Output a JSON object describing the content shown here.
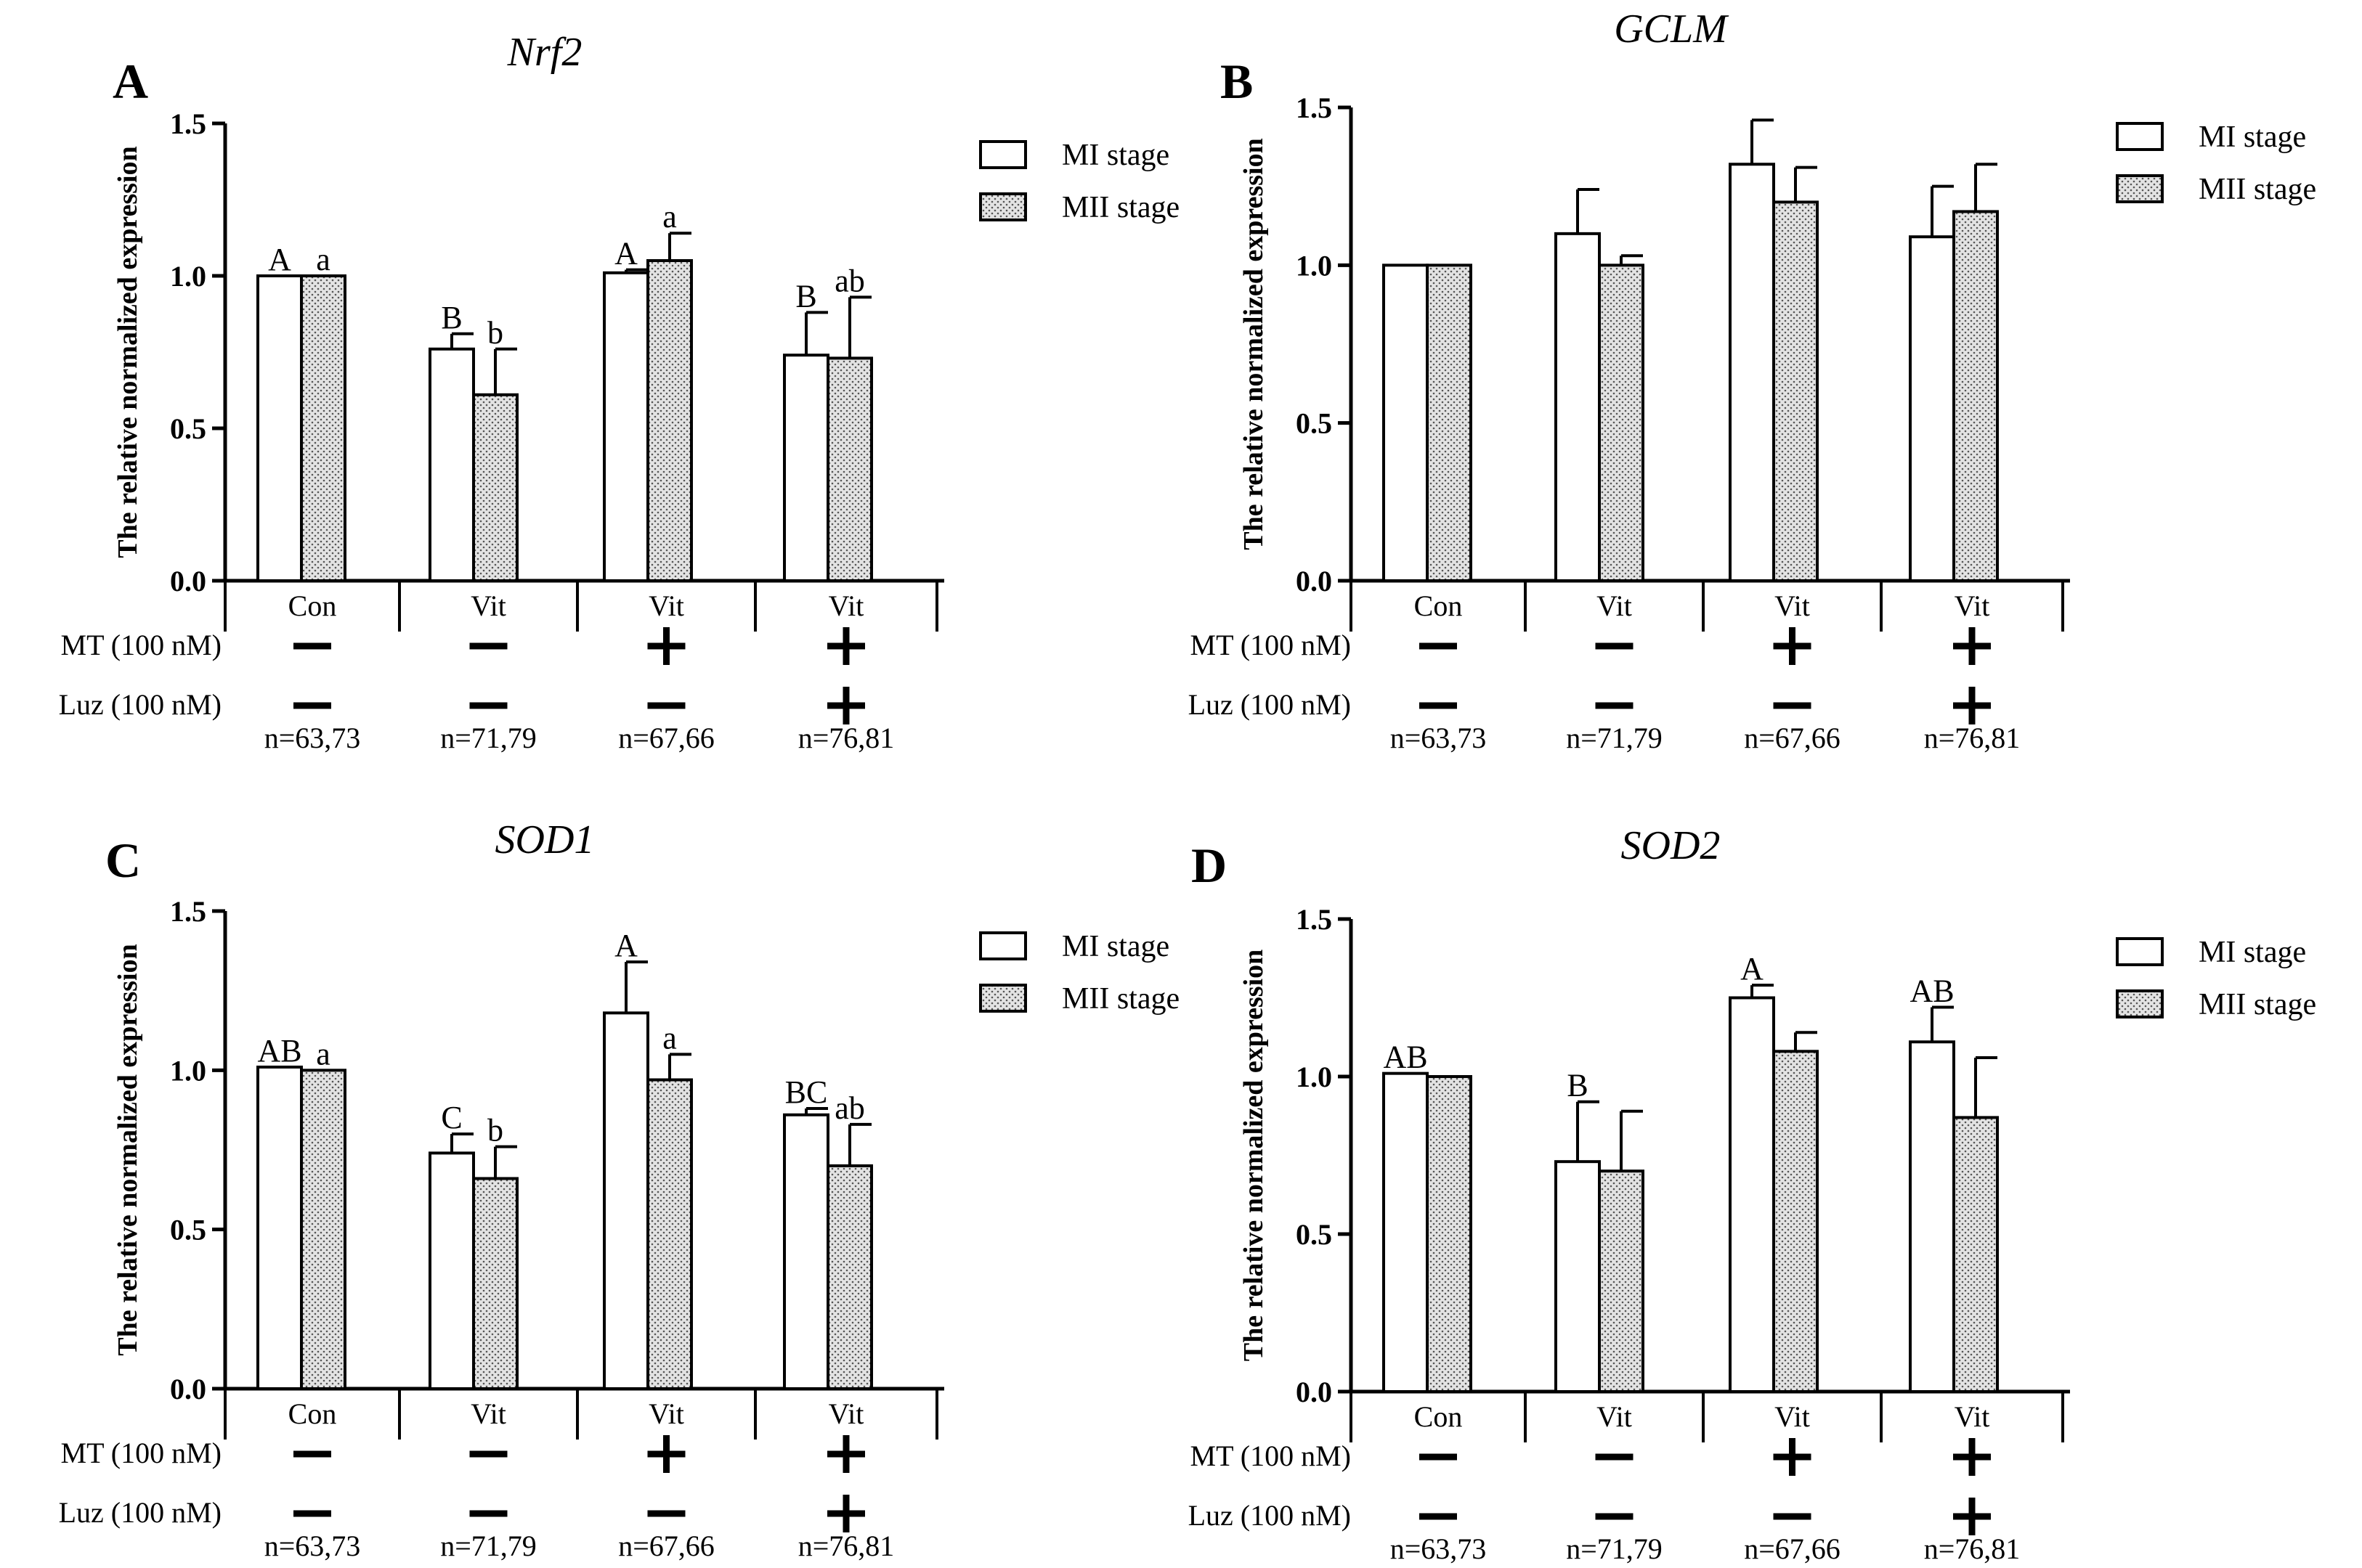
{
  "chart_data": [
    {
      "type": "bar",
      "panel_label": "A",
      "title": "Nrf2",
      "ylabel": "The relative normalized expression",
      "ylim": [
        0,
        1.5
      ],
      "yticks": [
        "0.0",
        "0.5",
        "1.0",
        "1.5"
      ],
      "categories": [
        "Con",
        "Vit",
        "Vit",
        "Vit"
      ],
      "series": [
        {
          "name": "MI stage",
          "values": [
            1.0,
            0.76,
            1.01,
            0.74
          ],
          "errors": [
            0.0,
            0.05,
            0.01,
            0.14
          ],
          "labels": [
            "A",
            "B",
            "A",
            "B"
          ]
        },
        {
          "name": "MII stage",
          "values": [
            1.0,
            0.61,
            1.05,
            0.73
          ],
          "errors": [
            0.0,
            0.15,
            0.09,
            0.2
          ],
          "labels": [
            "a",
            "b",
            "a",
            "ab"
          ]
        }
      ],
      "treatment_rows": [
        {
          "label": "MT (100 nM)",
          "signs": [
            "−",
            "−",
            "+",
            "+"
          ]
        },
        {
          "label": "Luz (100 nM)",
          "signs": [
            "−",
            "−",
            "−",
            "+"
          ]
        }
      ],
      "n_labels": [
        "n=63,73",
        "n=71,79",
        "n=67,66",
        "n=76,81"
      ],
      "legend_position": "top-right"
    },
    {
      "type": "bar",
      "panel_label": "B",
      "title": "GCLM",
      "ylabel": "The relative normalized expression",
      "ylim": [
        0,
        1.5
      ],
      "yticks": [
        "0.0",
        "0.5",
        "1.0",
        "1.5"
      ],
      "categories": [
        "Con",
        "Vit",
        "Vit",
        "Vit"
      ],
      "series": [
        {
          "name": "MI stage",
          "values": [
            1.0,
            1.1,
            1.32,
            1.09
          ],
          "errors": [
            0.0,
            0.14,
            0.14,
            0.16
          ],
          "labels": [
            "",
            "",
            "",
            ""
          ]
        },
        {
          "name": "MII stage",
          "values": [
            1.0,
            1.0,
            1.2,
            1.17
          ],
          "errors": [
            0.0,
            0.03,
            0.11,
            0.15
          ],
          "labels": [
            "",
            "",
            "",
            ""
          ]
        }
      ],
      "treatment_rows": [
        {
          "label": "MT (100 nM)",
          "signs": [
            "−",
            "−",
            "+",
            "+"
          ]
        },
        {
          "label": "Luz (100 nM)",
          "signs": [
            "−",
            "−",
            "−",
            "+"
          ]
        }
      ],
      "n_labels": [
        "n=63,73",
        "n=71,79",
        "n=67,66",
        "n=76,81"
      ],
      "legend_position": "top-right"
    },
    {
      "type": "bar",
      "panel_label": "C",
      "title": "SOD1",
      "ylabel": "The relative normalized expression",
      "ylim": [
        0,
        1.5
      ],
      "yticks": [
        "0.0",
        "0.5",
        "1.0",
        "1.5"
      ],
      "categories": [
        "Con",
        "Vit",
        "Vit",
        "Vit"
      ],
      "series": [
        {
          "name": "MI stage",
          "values": [
            1.01,
            0.74,
            1.18,
            0.86
          ],
          "errors": [
            0.0,
            0.06,
            0.16,
            0.02
          ],
          "labels": [
            "AB",
            "C",
            "A",
            "BC"
          ]
        },
        {
          "name": "MII stage",
          "values": [
            1.0,
            0.66,
            0.97,
            0.7
          ],
          "errors": [
            0.0,
            0.1,
            0.08,
            0.13
          ],
          "labels": [
            "a",
            "b",
            "a",
            "ab"
          ]
        }
      ],
      "treatment_rows": [
        {
          "label": "MT (100 nM)",
          "signs": [
            "−",
            "−",
            "+",
            "+"
          ]
        },
        {
          "label": "Luz (100 nM)",
          "signs": [
            "−",
            "−",
            "−",
            "+"
          ]
        }
      ],
      "n_labels": [
        "n=63,73",
        "n=71,79",
        "n=67,66",
        "n=76,81"
      ],
      "legend_position": "top-right"
    },
    {
      "type": "bar",
      "panel_label": "D",
      "title": "SOD2",
      "ylabel": "The relative normalized expression",
      "ylim": [
        0,
        1.5
      ],
      "yticks": [
        "0.0",
        "0.5",
        "1.0",
        "1.5"
      ],
      "categories": [
        "Con",
        "Vit",
        "Vit",
        "Vit"
      ],
      "series": [
        {
          "name": "MI stage",
          "values": [
            1.01,
            0.73,
            1.25,
            1.11
          ],
          "errors": [
            0.0,
            0.19,
            0.04,
            0.11
          ],
          "labels": [
            "AB",
            "B",
            "A",
            "AB"
          ]
        },
        {
          "name": "MII stage",
          "values": [
            1.0,
            0.7,
            1.08,
            0.87
          ],
          "errors": [
            0.0,
            0.19,
            0.06,
            0.19
          ],
          "labels": [
            "",
            "",
            "",
            ""
          ]
        }
      ],
      "treatment_rows": [
        {
          "label": "MT (100 nM)",
          "signs": [
            "−",
            "−",
            "+",
            "+"
          ]
        },
        {
          "label": "Luz (100 nM)",
          "signs": [
            "−",
            "−",
            "−",
            "+"
          ]
        }
      ],
      "n_labels": [
        "n=63,73",
        "n=71,79",
        "n=67,66",
        "n=76,81"
      ],
      "legend_position": "top-right"
    }
  ],
  "colors": {
    "axis": "#000000",
    "bar_fill_mi": "#ffffff",
    "bar_fill_mii": "#d9d9d9",
    "hatch_dot": "#555555"
  }
}
